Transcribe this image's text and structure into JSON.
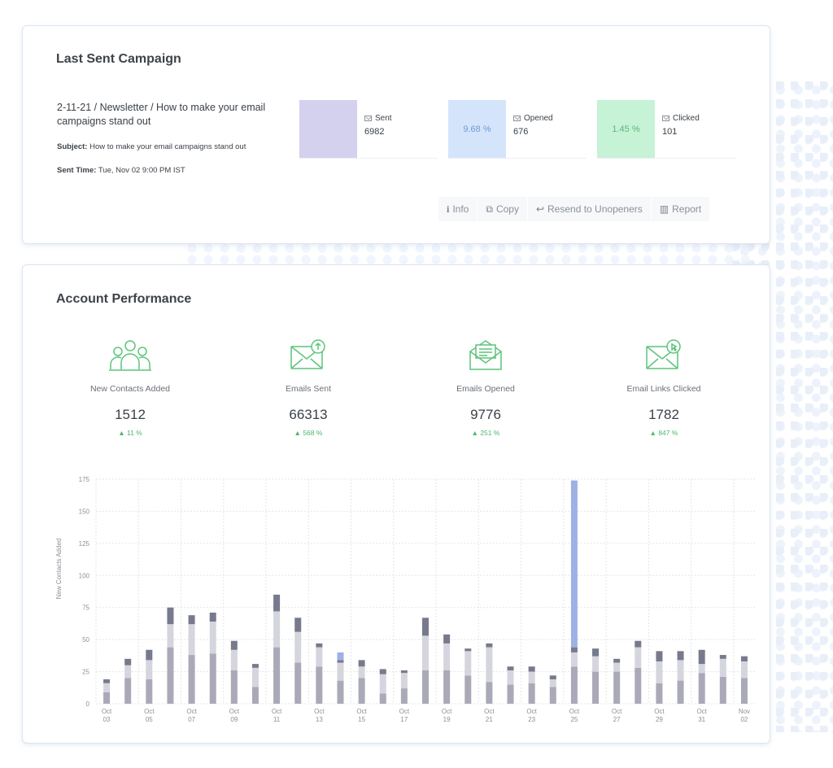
{
  "last_campaign": {
    "title": "Last Sent Campaign",
    "name": "2-11-21 / Newsletter / How to make your email campaigns stand out",
    "subject_label": "Subject:",
    "subject": "How to make your email campaigns stand out",
    "sent_time_label": "Sent Time:",
    "sent_time": "Tue, Nov 02 9:00 PM IST",
    "stats": [
      {
        "label": "Sent",
        "value": "6982",
        "percent": "",
        "color": "#d3d1ee"
      },
      {
        "label": "Opened",
        "value": "676",
        "percent": "9.68 %",
        "color": "#d4e5fb"
      },
      {
        "label": "Clicked",
        "value": "101",
        "percent": "1.45 %",
        "color": "#c6f2d6"
      }
    ],
    "actions": [
      {
        "icon": "info-icon",
        "label": "Info"
      },
      {
        "icon": "copy-icon",
        "label": "Copy"
      },
      {
        "icon": "reply-icon",
        "label": "Resend to Unopeners"
      },
      {
        "icon": "bar-chart-icon",
        "label": "Report"
      }
    ]
  },
  "performance": {
    "title": "Account Performance",
    "kpis": [
      {
        "icon": "contacts-icon",
        "label": "New Contacts Added",
        "value": "1512",
        "change": "11 %"
      },
      {
        "icon": "email-sent-icon",
        "label": "Emails Sent",
        "value": "66313",
        "change": "568 %"
      },
      {
        "icon": "email-opened-icon",
        "label": "Emails Opened",
        "value": "9776",
        "change": "251 %"
      },
      {
        "icon": "email-clicked-icon",
        "label": "Email Links Clicked",
        "value": "1782",
        "change": "847 %"
      }
    ],
    "accent_color": "#5cc47a"
  },
  "chart_data": {
    "type": "bar",
    "stacked": true,
    "ylabel": "New Contacts Added",
    "ylim": [
      0,
      175
    ],
    "yticks": [
      0,
      25,
      50,
      75,
      100,
      125,
      150,
      175
    ],
    "categories": [
      "Oct 03",
      "Oct 04",
      "Oct 05",
      "Oct 06",
      "Oct 07",
      "Oct 08",
      "Oct 09",
      "Oct 10",
      "Oct 11",
      "Oct 12",
      "Oct 13",
      "Oct 14",
      "Oct 15",
      "Oct 16",
      "Oct 17",
      "Oct 18",
      "Oct 19",
      "Oct 20",
      "Oct 21",
      "Oct 22",
      "Oct 23",
      "Oct 24",
      "Oct 25",
      "Oct 26",
      "Oct 27",
      "Oct 28",
      "Oct 29",
      "Oct 30",
      "Oct 31",
      "Nov 01",
      "Nov 02"
    ],
    "tick_labels": [
      [
        "Oct",
        "03"
      ],
      [
        "Oct",
        "05"
      ],
      [
        "Oct",
        "07"
      ],
      [
        "Oct",
        "09"
      ],
      [
        "Oct",
        "11"
      ],
      [
        "Oct",
        "13"
      ],
      [
        "Oct",
        "15"
      ],
      [
        "Oct",
        "17"
      ],
      [
        "Oct",
        "19"
      ],
      [
        "Oct",
        "21"
      ],
      [
        "Oct",
        "23"
      ],
      [
        "Oct",
        "25"
      ],
      [
        "Oct",
        "27"
      ],
      [
        "Oct",
        "29"
      ],
      [
        "Oct",
        "31"
      ],
      [
        "Nov",
        "02"
      ]
    ],
    "series": [
      {
        "color": "#a9a9b8",
        "values": [
          9,
          20,
          19,
          44,
          38,
          39,
          26,
          13,
          44,
          32,
          29,
          18,
          20,
          8,
          12,
          26,
          26,
          22,
          17,
          15,
          16,
          13,
          29,
          25,
          25,
          28,
          16,
          18,
          24,
          21,
          20
        ]
      },
      {
        "color": "#d5d6dd",
        "values": [
          7,
          10,
          15,
          18,
          24,
          25,
          16,
          15,
          28,
          24,
          15,
          14,
          9,
          15,
          12,
          27,
          21,
          19,
          27,
          11,
          9,
          6,
          11,
          12,
          7,
          16,
          17,
          16,
          7,
          14,
          13
        ]
      },
      {
        "color": "#777a8c",
        "values": [
          3,
          5,
          8,
          13,
          7,
          7,
          7,
          3,
          13,
          11,
          3,
          2,
          5,
          4,
          2,
          14,
          7,
          2,
          3,
          3,
          4,
          3,
          4,
          6,
          3,
          5,
          8,
          7,
          11,
          3,
          4
        ]
      },
      {
        "color": "#9fb0e4",
        "values": [
          0,
          0,
          0,
          0,
          0,
          0,
          0,
          0,
          0,
          0,
          0,
          6,
          0,
          0,
          0,
          0,
          0,
          0,
          0,
          0,
          0,
          0,
          130,
          0,
          0,
          0,
          0,
          0,
          0,
          0,
          0
        ]
      }
    ]
  }
}
